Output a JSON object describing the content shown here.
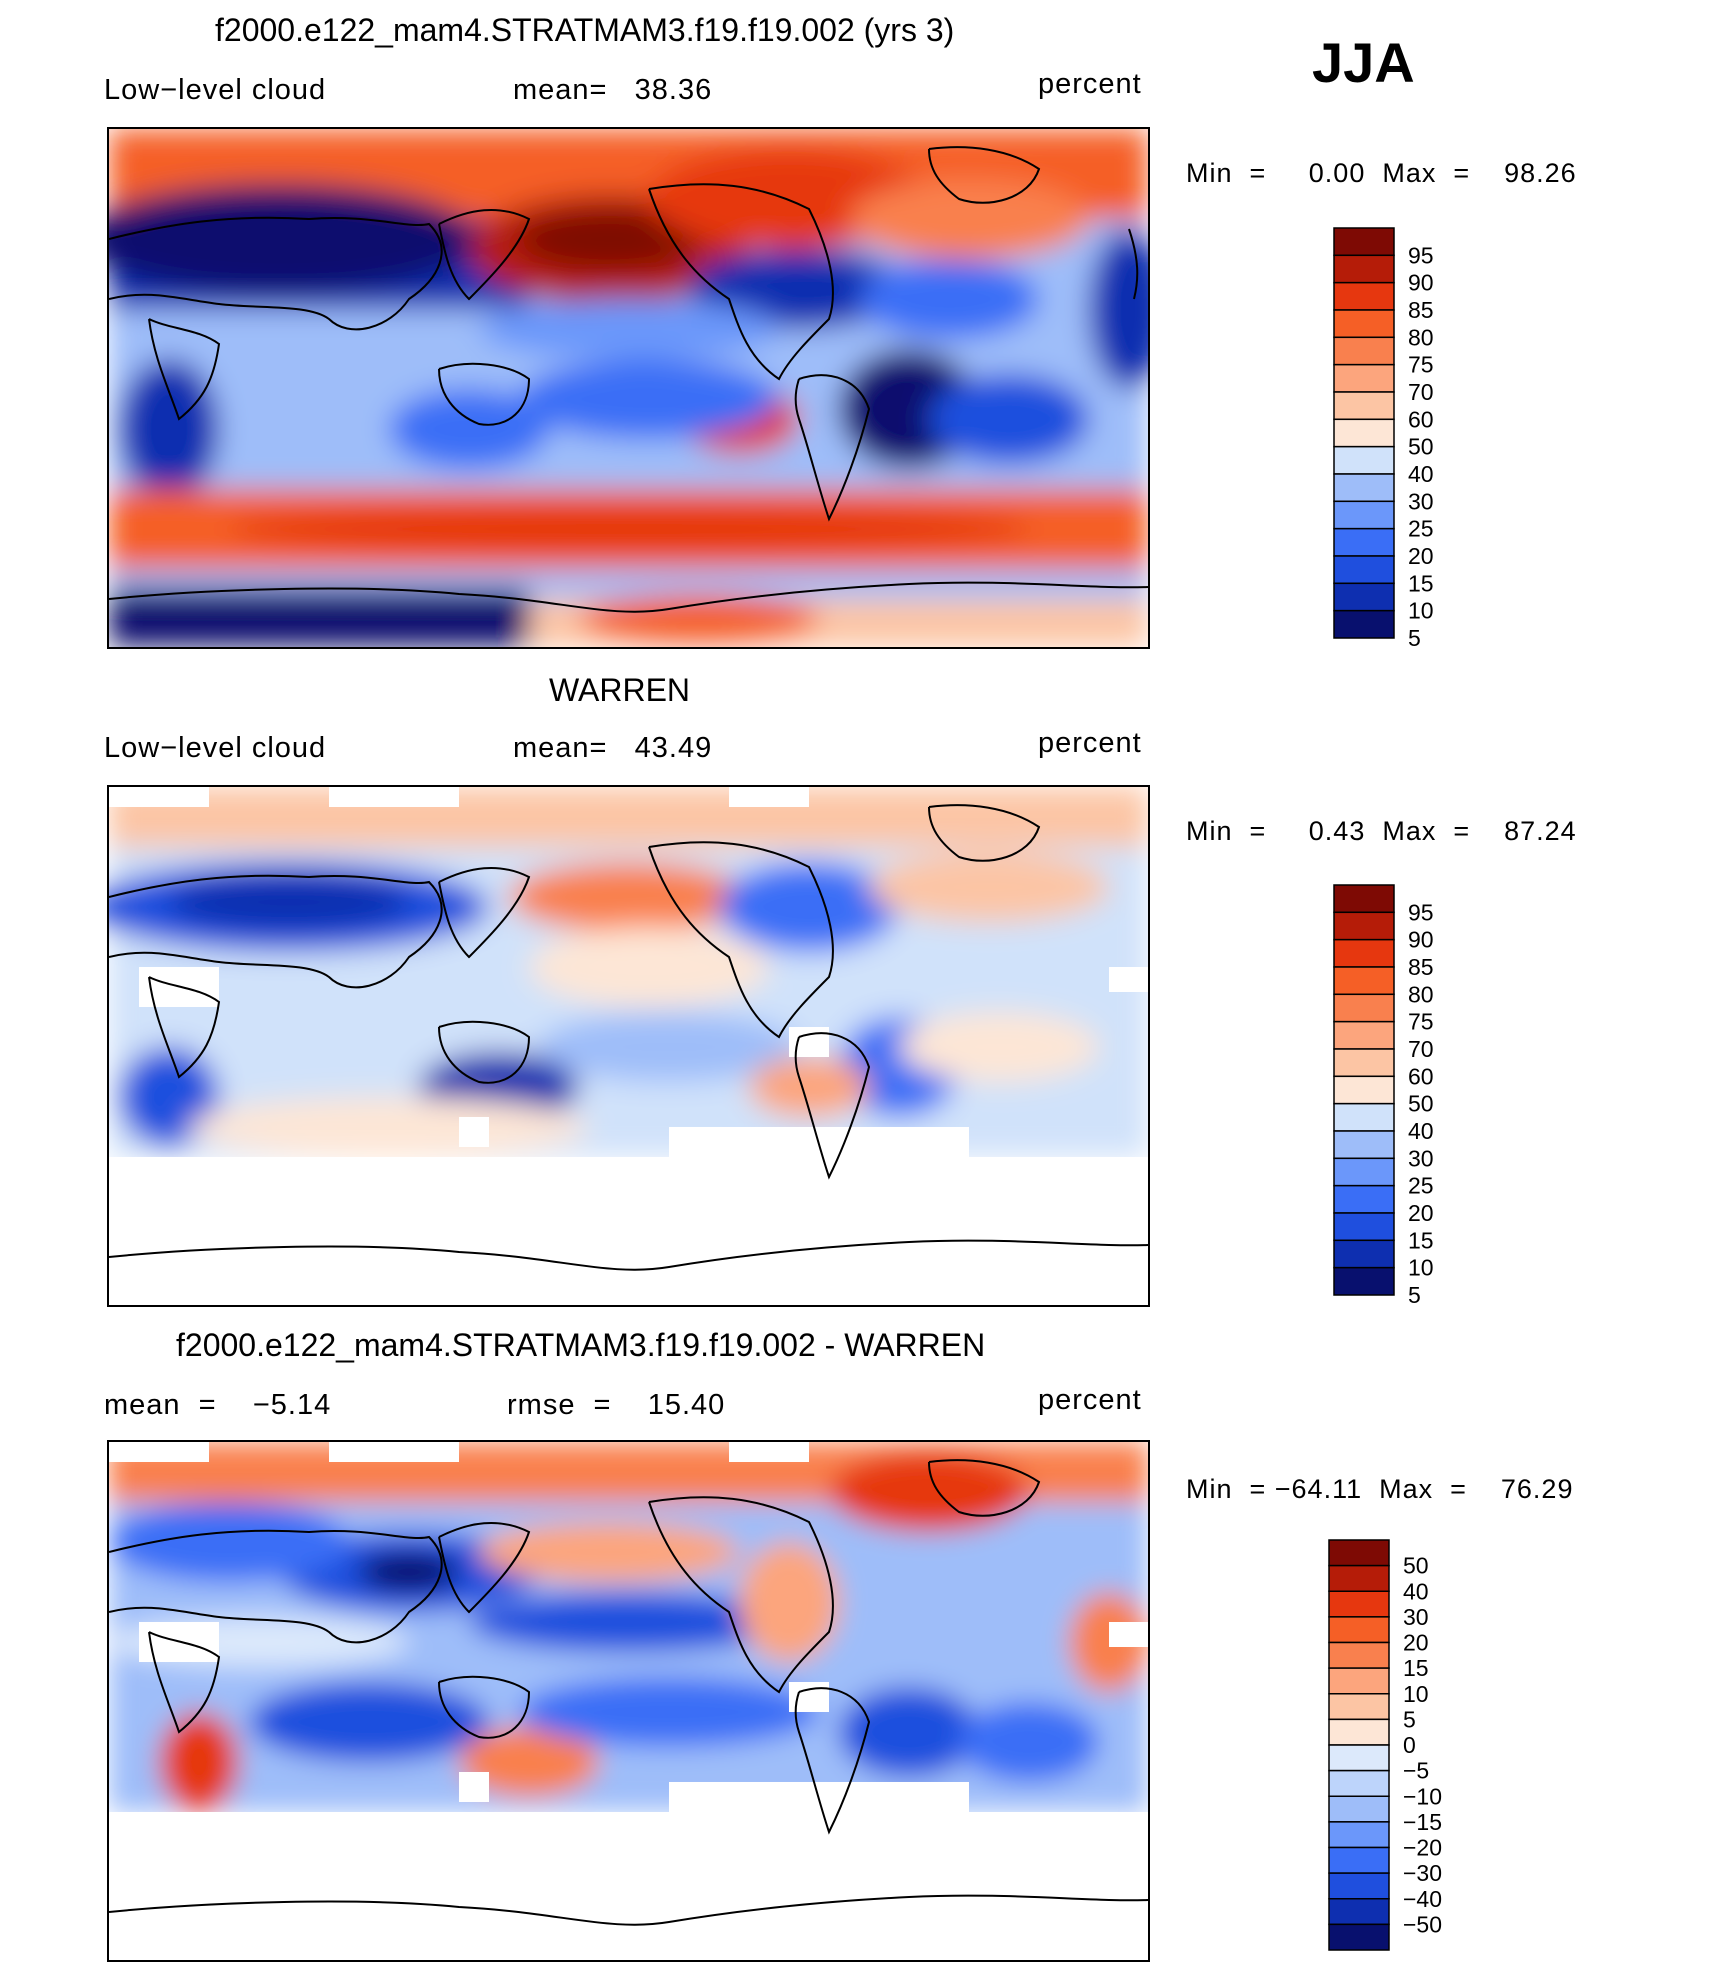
{
  "season": "JJA",
  "colors": {
    "abs_scale": [
      "#08106e",
      "#0e2fb0",
      "#1f4fde",
      "#3a6ef6",
      "#6b97fa",
      "#9ebdf9",
      "#d0e2fa",
      "#fde6d6",
      "#fcc5a4",
      "#fca57d",
      "#f9804e",
      "#f55f26",
      "#e6370f",
      "#b51c08",
      "#7e0a04"
    ],
    "diff_scale": [
      "#08106e",
      "#0e2fb0",
      "#1f4fde",
      "#3a6ef6",
      "#6b97fa",
      "#9ebdf9",
      "#bdd4fb",
      "#dce9fb",
      "#fde6d6",
      "#fcc5a4",
      "#fca57d",
      "#f9804e",
      "#f55f26",
      "#e6370f",
      "#b51c08",
      "#7e0a04"
    ],
    "land_outline": "#000000"
  },
  "panels": [
    {
      "id": "model",
      "title": "f2000.e122_mam4.STRATMAM3.f19.f19.002 (yrs 3)",
      "left_label": "Low−level cloud",
      "middle_label": "mean=   38.36",
      "right_label": "percent",
      "minmax": "Min  =     0.00  Max  =    98.26",
      "colorbar_labels": [
        "95",
        "90",
        "85",
        "80",
        "75",
        "70",
        "60",
        "50",
        "40",
        "30",
        "25",
        "20",
        "15",
        "10",
        "5"
      ]
    },
    {
      "id": "obs",
      "title": "WARREN",
      "left_label": "Low−level cloud",
      "middle_label": "mean=   43.49",
      "right_label": "percent",
      "minmax": "Min  =     0.43  Max  =    87.24",
      "colorbar_labels": [
        "95",
        "90",
        "85",
        "80",
        "75",
        "70",
        "60",
        "50",
        "40",
        "30",
        "25",
        "20",
        "15",
        "10",
        "5"
      ]
    },
    {
      "id": "diff",
      "title": "f2000.e122_mam4.STRATMAM3.f19.f19.002 - WARREN",
      "left_label": "mean  =    −5.14",
      "middle_label": "rmse  =    15.40",
      "right_label": "percent",
      "minmax": "Min  = −64.11  Max  =    76.29",
      "colorbar_labels": [
        "50",
        "40",
        "30",
        "20",
        "15",
        "10",
        "5",
        "0",
        "−5",
        "−10",
        "−15",
        "−20",
        "−30",
        "−40",
        "−50"
      ]
    }
  ],
  "chart_data": [
    {
      "type": "heatmap",
      "title": "f2000.e122_mam4.STRATMAM3.f19.f19.002 (yrs 3)",
      "variable": "Low−level cloud",
      "units": "percent",
      "mean": 38.36,
      "min": 0.0,
      "max": 98.26,
      "levels": [
        5,
        10,
        15,
        20,
        25,
        30,
        40,
        50,
        60,
        70,
        75,
        80,
        85,
        90,
        95
      ]
    },
    {
      "type": "heatmap",
      "title": "WARREN",
      "variable": "Low−level cloud",
      "units": "percent",
      "mean": 43.49,
      "min": 0.43,
      "max": 87.24,
      "levels": [
        5,
        10,
        15,
        20,
        25,
        30,
        40,
        50,
        60,
        70,
        75,
        80,
        85,
        90,
        95
      ]
    },
    {
      "type": "heatmap",
      "title": "f2000.e122_mam4.STRATMAM3.f19.f19.002 - WARREN",
      "units": "percent",
      "mean": -5.14,
      "rmse": 15.4,
      "min": -64.11,
      "max": 76.29,
      "levels": [
        -50,
        -40,
        -30,
        -20,
        -15,
        -10,
        -5,
        0,
        5,
        10,
        15,
        20,
        30,
        40,
        50
      ]
    }
  ]
}
